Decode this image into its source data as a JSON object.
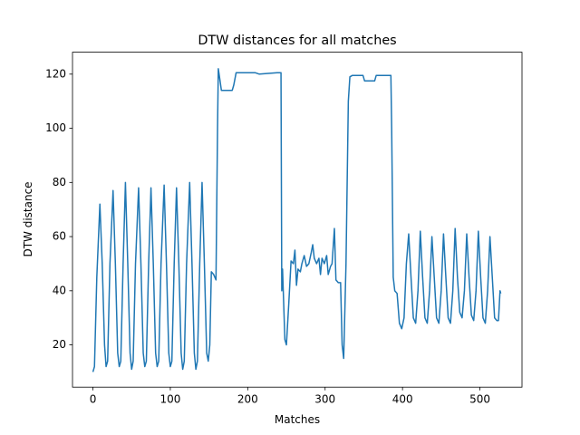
{
  "chart_data": {
    "type": "line",
    "title": "DTW distances for all matches",
    "xlabel": "Matches",
    "ylabel": "DTW distance",
    "x": [
      0,
      2,
      5,
      9,
      12,
      15,
      17,
      19,
      22,
      26,
      29,
      32,
      34,
      36,
      39,
      42,
      45,
      48,
      50,
      52,
      55,
      59,
      62,
      65,
      67,
      69,
      72,
      75,
      78,
      81,
      83,
      85,
      88,
      92,
      95,
      98,
      100,
      102,
      105,
      108,
      111,
      114,
      116,
      118,
      121,
      125,
      128,
      131,
      133,
      135,
      138,
      141,
      144,
      147,
      149,
      151,
      153,
      156,
      159,
      161,
      162,
      164,
      166,
      180,
      182,
      185,
      210,
      215,
      238,
      243,
      244,
      245,
      248,
      250,
      253,
      256,
      259,
      261,
      263,
      265,
      268,
      270,
      273,
      276,
      279,
      282,
      284,
      286,
      289,
      292,
      294,
      296,
      299,
      302,
      304,
      307,
      309,
      312,
      314,
      317,
      320,
      322,
      324,
      327,
      330,
      332,
      335,
      349,
      351,
      364,
      366,
      385,
      386,
      388,
      390,
      393,
      396,
      399,
      402,
      405,
      408,
      411,
      414,
      417,
      420,
      423,
      426,
      429,
      432,
      435,
      438,
      441,
      444,
      447,
      450,
      453,
      456,
      459,
      462,
      465,
      468,
      471,
      474,
      477,
      480,
      483,
      486,
      489,
      492,
      495,
      498,
      501,
      504,
      507,
      510,
      513,
      516,
      519,
      522,
      524,
      526,
      527
    ],
    "series": [
      {
        "name": "DTW distance",
        "color": "#1f77b4",
        "values": [
          10,
          12,
          45,
          72,
          50,
          20,
          12,
          14,
          50,
          77,
          50,
          17,
          12,
          14,
          50,
          80,
          50,
          17,
          11,
          14,
          50,
          78,
          50,
          17,
          12,
          14,
          50,
          78,
          50,
          17,
          12,
          14,
          50,
          79,
          50,
          17,
          12,
          14,
          50,
          78,
          50,
          17,
          11,
          14,
          50,
          80,
          50,
          17,
          11,
          14,
          50,
          80,
          50,
          17,
          14,
          20,
          47,
          46,
          44,
          100,
          122,
          118,
          114,
          114,
          116,
          120.5,
          120.5,
          120,
          120.5,
          120.5,
          40,
          48,
          22,
          20,
          35,
          51,
          50,
          55,
          42,
          48,
          47,
          50,
          53,
          49,
          50,
          54,
          57,
          52,
          50,
          52,
          46,
          52,
          50,
          53,
          46,
          49,
          50,
          63,
          44,
          43,
          43,
          20,
          15,
          50,
          110,
          119,
          119.5,
          119.5,
          117.5,
          117.5,
          119.5,
          119.5,
          100,
          45,
          40,
          39,
          28,
          26,
          30,
          50,
          61,
          45,
          30,
          28,
          40,
          62,
          45,
          30,
          28,
          40,
          60,
          45,
          30,
          28,
          40,
          61,
          45,
          30,
          28,
          40,
          63,
          45,
          32,
          30,
          40,
          61,
          45,
          31,
          29,
          40,
          62,
          45,
          30,
          28,
          40,
          60,
          45,
          30,
          29,
          29,
          40,
          39
        ]
      }
    ],
    "xlim": [
      -26.4,
      554.4
    ],
    "ylim": [
      4.4,
      128.1
    ],
    "xticks": [
      0,
      100,
      200,
      300,
      400,
      500
    ],
    "yticks": [
      20,
      40,
      60,
      80,
      100,
      120
    ]
  }
}
